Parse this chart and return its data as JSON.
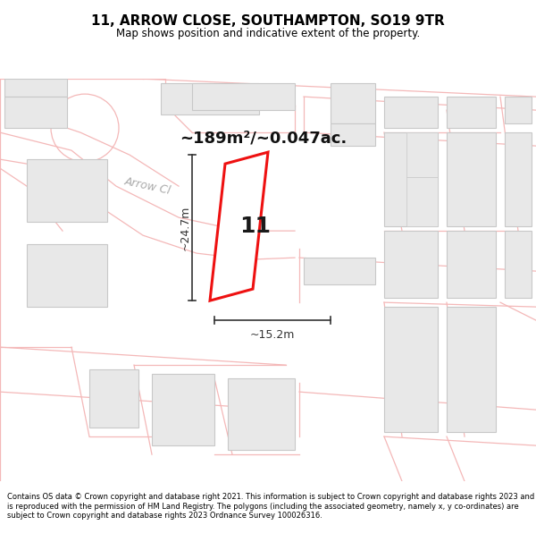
{
  "title": "11, ARROW CLOSE, SOUTHAMPTON, SO19 9TR",
  "subtitle": "Map shows position and indicative extent of the property.",
  "footer": "Contains OS data © Crown copyright and database right 2021. This information is subject to Crown copyright and database rights 2023 and is reproduced with the permission of HM Land Registry. The polygons (including the associated geometry, namely x, y co-ordinates) are subject to Crown copyright and database rights 2023 Ordnance Survey 100026316.",
  "area_text": "~189m²/~0.047ac.",
  "width_label": "~15.2m",
  "height_label": "~24.7m",
  "property_number": "11",
  "bg_color": "#ffffff",
  "road_label": "Arrow Cl",
  "building_fill": "#e8e8e8",
  "building_edge": "#c8c8c8",
  "road_line_color": "#f4b8b8",
  "highlight_color": "#ee1111",
  "highlight_fill": "#ffffff",
  "road_fill": "#ffffff",
  "road_label_color": "#aaaaaa",
  "dim_color": "#333333"
}
